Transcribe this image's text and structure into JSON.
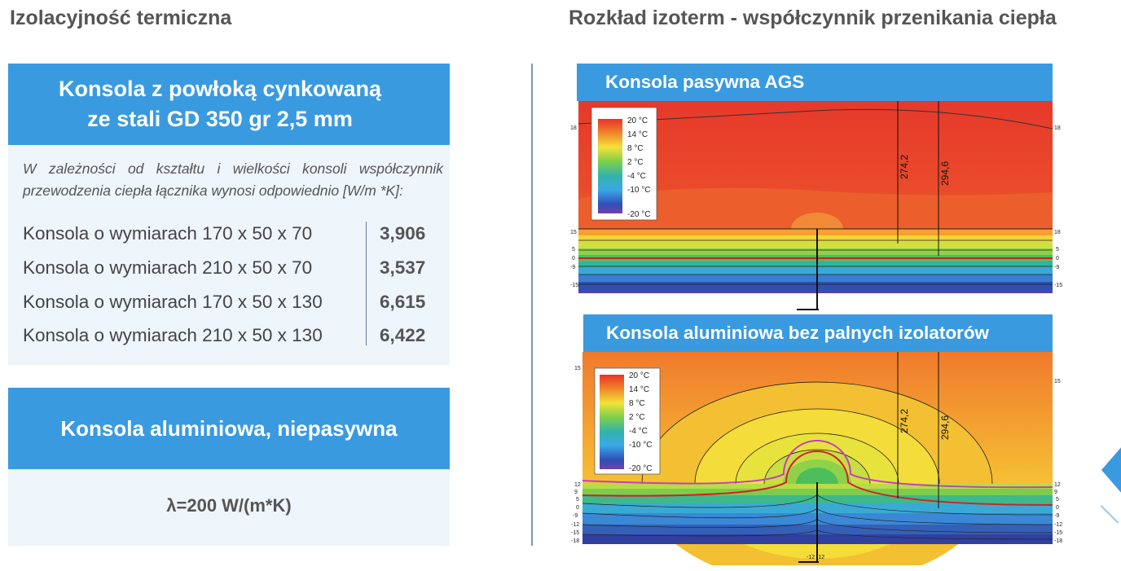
{
  "left": {
    "title": "Izolacyjność termiczna",
    "steel": {
      "heading_line1": "Konsola z powłoką cynkowaną",
      "heading_line2": "ze stali GD 350 gr 2,5 mm",
      "description": "W zależności od kształtu i wielkości konsoli współczynnik przewodzenia ciepła łącznika wynosi odpowiednio [W/m *K]:",
      "rows": [
        {
          "label": "Konsola o wymiarach 170 x 50 x 70",
          "value": "3,906"
        },
        {
          "label": "Konsola o wymiarach 210 x 50 x 70",
          "value": "3,537"
        },
        {
          "label": "Konsola o wymiarach 170 x 50 x 130",
          "value": "6,615"
        },
        {
          "label": "Konsola o wymiarach 210 x 50 x 130",
          "value": "6,422"
        }
      ]
    },
    "aluminium": {
      "heading": "Konsola aluminiowa, niepasywna",
      "lambda": "λ=200 W/(m*K)"
    }
  },
  "right": {
    "title": "Rozkład izoterm - współczynnik przenikania ciepła",
    "ags": {
      "heading": "Konsola pasywna AGS",
      "legend": [
        "20 °C",
        "14 °C",
        "8 °C",
        "2 °C",
        "-4 °C",
        "-10 °C",
        "-20 °C"
      ],
      "dim1": "274,2",
      "dim2": "294,6",
      "left_ticks": [
        "18",
        "15",
        "5",
        "0",
        "-9",
        "-15"
      ],
      "right_ticks": [
        "18",
        "18",
        "5",
        "0",
        "-9",
        "-15"
      ]
    },
    "aluminium_map": {
      "heading": "Konsola aluminiowa bez palnych izolatorów",
      "legend": [
        "20 °C",
        "14 °C",
        "8 °C",
        "2 °C",
        "-4 °C",
        "-10 °C",
        "-20 °C"
      ],
      "dim1": "274,2",
      "dim2": "294,6",
      "left_ticks": [
        "15",
        "12",
        "9",
        "5",
        "0",
        "-9",
        "-12",
        "-15",
        "-18"
      ],
      "right_ticks": [
        "15",
        "12",
        "9",
        "5",
        "0",
        "-9",
        "-12",
        "-15",
        "-18"
      ],
      "bottom_label": "-12 -12"
    }
  },
  "colors": {
    "accent": "#3a9ae0",
    "panel": "#eef5fb",
    "hot": "#e8432a",
    "cold": "#3a3ab0"
  }
}
